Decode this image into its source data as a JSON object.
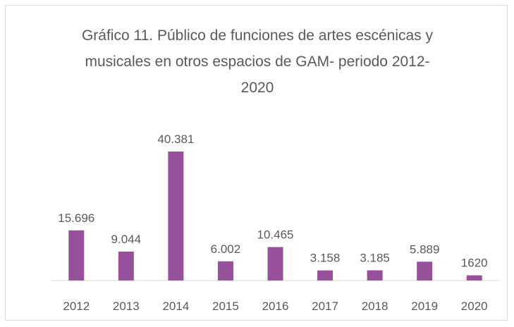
{
  "chart_data": {
    "type": "bar",
    "title": "Gráfico 11. Público de funciones de artes escénicas y musicales en otros espacios de GAM- periodo 2012-2020",
    "categories": [
      "2012",
      "2013",
      "2014",
      "2015",
      "2016",
      "2017",
      "2018",
      "2019",
      "2020"
    ],
    "values": [
      15696,
      9044,
      40381,
      6002,
      10465,
      3158,
      3185,
      5889,
      1620
    ],
    "value_labels": [
      "15.696",
      "9.044",
      "40.381",
      "6.002",
      "10.465",
      "3.158",
      "3.185",
      "5.889",
      "1620"
    ],
    "color": "#97509a"
  }
}
